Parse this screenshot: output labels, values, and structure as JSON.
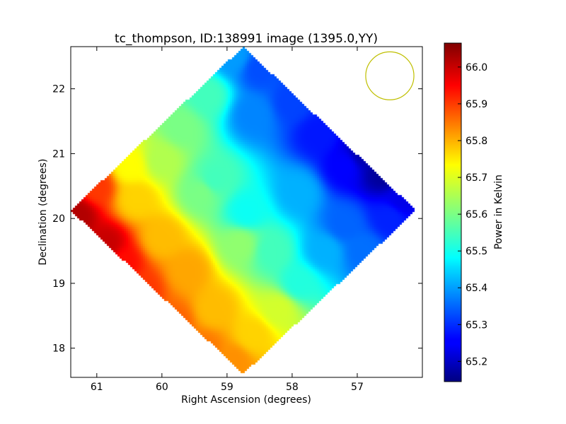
{
  "chart_data": {
    "type": "heatmap",
    "title": "tc_thompson, ID:138991 image (1395.0,YY)",
    "xlabel": "Right Ascension (degrees)",
    "ylabel": "Declination (degrees)",
    "xlim": [
      61.4,
      56.0
    ],
    "ylim": [
      17.55,
      22.65
    ],
    "x_ticks": [
      61,
      60,
      59,
      58,
      57
    ],
    "y_ticks": [
      18,
      19,
      20,
      21,
      22
    ],
    "grid": false,
    "colormap": "jet",
    "colorbar": {
      "label": "Power in Kelvin",
      "range": [
        65.145,
        66.065
      ],
      "ticks": [
        "65.2",
        "65.3",
        "65.4",
        "65.5",
        "65.6",
        "65.7",
        "65.8",
        "65.9",
        "66.0"
      ]
    },
    "footprint": {
      "shape": "diamond",
      "vertices_deg": [
        [
          58.85,
          22.65
        ],
        [
          56.1,
          20.1
        ],
        [
          58.85,
          17.6
        ],
        [
          61.4,
          20.1
        ]
      ]
    },
    "samples": [
      {
        "ra": 61.3,
        "dec": 20.05,
        "value": 66.02
      },
      {
        "ra": 60.85,
        "dec": 19.6,
        "value": 66.0
      },
      {
        "ra": 60.6,
        "dec": 19.3,
        "value": 65.94
      },
      {
        "ra": 60.3,
        "dec": 18.9,
        "value": 65.9
      },
      {
        "ra": 59.8,
        "dec": 18.4,
        "value": 65.86
      },
      {
        "ra": 59.35,
        "dec": 18.0,
        "value": 65.84
      },
      {
        "ra": 58.9,
        "dec": 17.8,
        "value": 65.82
      },
      {
        "ra": 61.0,
        "dec": 20.5,
        "value": 65.9
      },
      {
        "ra": 60.4,
        "dec": 20.3,
        "value": 65.76
      },
      {
        "ra": 60.0,
        "dec": 19.7,
        "value": 65.78
      },
      {
        "ra": 59.6,
        "dec": 19.2,
        "value": 65.8
      },
      {
        "ra": 59.2,
        "dec": 18.6,
        "value": 65.78
      },
      {
        "ra": 58.6,
        "dec": 18.2,
        "value": 65.76
      },
      {
        "ra": 58.2,
        "dec": 18.6,
        "value": 65.68
      },
      {
        "ra": 60.5,
        "dec": 20.8,
        "value": 65.72
      },
      {
        "ra": 60.0,
        "dec": 20.9,
        "value": 65.65
      },
      {
        "ra": 59.7,
        "dec": 21.4,
        "value": 65.6
      },
      {
        "ra": 59.3,
        "dec": 21.9,
        "value": 65.55
      },
      {
        "ra": 59.2,
        "dec": 20.6,
        "value": 65.55
      },
      {
        "ra": 58.7,
        "dec": 20.1,
        "value": 65.5
      },
      {
        "ra": 58.8,
        "dec": 19.6,
        "value": 65.62
      },
      {
        "ra": 58.3,
        "dec": 19.5,
        "value": 65.55
      },
      {
        "ra": 57.9,
        "dec": 19.0,
        "value": 65.52
      },
      {
        "ra": 57.5,
        "dec": 19.5,
        "value": 65.42
      },
      {
        "ra": 57.9,
        "dec": 20.4,
        "value": 65.42
      },
      {
        "ra": 58.6,
        "dec": 21.6,
        "value": 65.38
      },
      {
        "ra": 58.5,
        "dec": 22.3,
        "value": 65.33
      },
      {
        "ra": 58.0,
        "dec": 21.8,
        "value": 65.32
      },
      {
        "ra": 57.6,
        "dec": 21.3,
        "value": 65.28
      },
      {
        "ra": 57.2,
        "dec": 20.8,
        "value": 65.26
      },
      {
        "ra": 56.9,
        "dec": 21.0,
        "value": 65.19
      },
      {
        "ra": 56.6,
        "dec": 20.7,
        "value": 65.17
      },
      {
        "ra": 56.3,
        "dec": 20.3,
        "value": 65.24
      },
      {
        "ra": 56.5,
        "dec": 20.0,
        "value": 65.29
      },
      {
        "ra": 57.2,
        "dec": 19.9,
        "value": 65.35
      },
      {
        "ra": 56.9,
        "dec": 19.5,
        "value": 65.36
      },
      {
        "ra": 58.9,
        "dec": 22.5,
        "value": 65.4
      },
      {
        "ra": 59.4,
        "dec": 20.4,
        "value": 65.6
      }
    ],
    "beam": {
      "ra": 56.5,
      "dec": 22.2,
      "radius_deg": 0.37,
      "color": "#bfbf00"
    }
  }
}
